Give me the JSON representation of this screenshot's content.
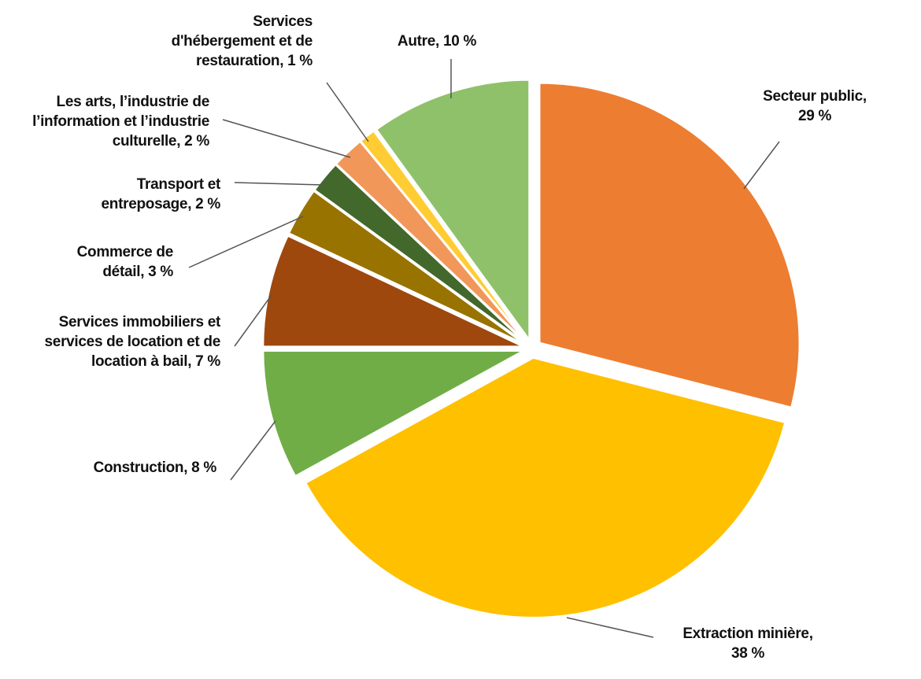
{
  "chart_data": {
    "type": "pie",
    "start_angle_deg": 0,
    "direction": "clockwise",
    "exploded": true,
    "slices": [
      {
        "label": "Secteur public,\n29 %",
        "name": "Secteur public",
        "value": 29,
        "color": "#ED7D31"
      },
      {
        "label": "Extraction minière,\n38 %",
        "name": "Extraction minière",
        "value": 38,
        "color": "#FFC000"
      },
      {
        "label": "Construction, 8 %",
        "name": "Construction",
        "value": 8,
        "color": "#70AD47"
      },
      {
        "label": "Services immobiliers et\nservices de location et de\nlocation à bail, 7 %",
        "name": "Services immobiliers et services de location et de location à bail",
        "value": 7,
        "color": "#9E480E"
      },
      {
        "label": "Commerce de\ndétail, 3 %",
        "name": "Commerce de détail",
        "value": 3,
        "color": "#997300"
      },
      {
        "label": "Transport et\nentreposage, 2 %",
        "name": "Transport et entreposage",
        "value": 2,
        "color": "#43682B"
      },
      {
        "label": "Les arts, l’industrie de\nl’information et l’industrie\nculturelle, 2 %",
        "name": "Les arts, l’industrie de l’information et l’industrie culturelle",
        "value": 2,
        "color": "#F1975A"
      },
      {
        "label": "Services\nd'hébergement et de\nrestauration, 1 %",
        "name": "Services d'hébergement et de restauration",
        "value": 1,
        "color": "#FFCD33"
      },
      {
        "label": "Autre, 10 %",
        "name": "Autre",
        "value": 10,
        "color": "#8FC16A"
      }
    ]
  }
}
